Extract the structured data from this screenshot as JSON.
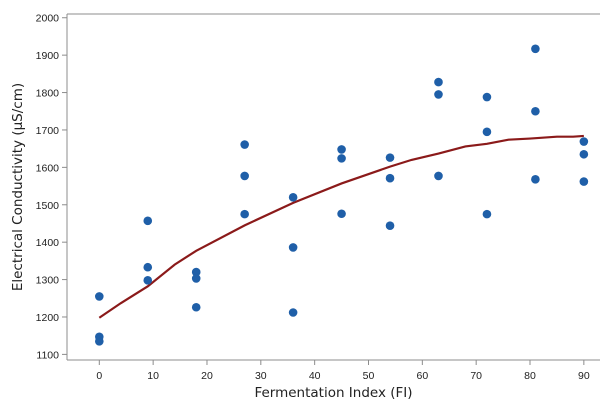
{
  "chart_data": {
    "type": "scatter",
    "title": "",
    "xlabel": "Fermentation Index (FI)",
    "ylabel": "Electrical Conductivity (µS/cm)",
    "xlim": [
      -6,
      93
    ],
    "ylim": [
      1085,
      2010
    ],
    "xticks": [
      0,
      10,
      20,
      30,
      40,
      50,
      60,
      70,
      80,
      90
    ],
    "yticks": [
      1100,
      1200,
      1300,
      1400,
      1500,
      1600,
      1700,
      1800,
      1900,
      2000
    ],
    "grid": false,
    "legend": "none",
    "colors": {
      "points": "#1f5fa8",
      "fit": "#8b1a1a",
      "axis": "#8c8c8c"
    },
    "points": [
      {
        "x": 0,
        "y": 1255
      },
      {
        "x": 0,
        "y": 1147
      },
      {
        "x": 0,
        "y": 1135
      },
      {
        "x": 9,
        "y": 1457
      },
      {
        "x": 9,
        "y": 1333
      },
      {
        "x": 9,
        "y": 1298
      },
      {
        "x": 18,
        "y": 1320
      },
      {
        "x": 18,
        "y": 1303
      },
      {
        "x": 18,
        "y": 1226
      },
      {
        "x": 27,
        "y": 1661
      },
      {
        "x": 27,
        "y": 1577
      },
      {
        "x": 27,
        "y": 1475
      },
      {
        "x": 36,
        "y": 1520
      },
      {
        "x": 36,
        "y": 1386
      },
      {
        "x": 36,
        "y": 1212
      },
      {
        "x": 45,
        "y": 1648
      },
      {
        "x": 45,
        "y": 1624
      },
      {
        "x": 45,
        "y": 1476
      },
      {
        "x": 54,
        "y": 1626
      },
      {
        "x": 54,
        "y": 1571
      },
      {
        "x": 54,
        "y": 1444
      },
      {
        "x": 63,
        "y": 1828
      },
      {
        "x": 63,
        "y": 1795
      },
      {
        "x": 63,
        "y": 1577
      },
      {
        "x": 72,
        "y": 1788
      },
      {
        "x": 72,
        "y": 1695
      },
      {
        "x": 72,
        "y": 1475
      },
      {
        "x": 81,
        "y": 1917
      },
      {
        "x": 81,
        "y": 1750
      },
      {
        "x": 81,
        "y": 1568
      },
      {
        "x": 90,
        "y": 1669
      },
      {
        "x": 90,
        "y": 1635
      },
      {
        "x": 90,
        "y": 1562
      }
    ],
    "fit_line": [
      {
        "x": 0,
        "y": 1198
      },
      {
        "x": 4,
        "y": 1237
      },
      {
        "x": 9,
        "y": 1282
      },
      {
        "x": 14,
        "y": 1340
      },
      {
        "x": 18,
        "y": 1377
      },
      {
        "x": 27,
        "y": 1445
      },
      {
        "x": 36,
        "y": 1505
      },
      {
        "x": 45,
        "y": 1557
      },
      {
        "x": 54,
        "y": 1602
      },
      {
        "x": 58,
        "y": 1620
      },
      {
        "x": 63,
        "y": 1637
      },
      {
        "x": 68,
        "y": 1656
      },
      {
        "x": 72,
        "y": 1663
      },
      {
        "x": 76,
        "y": 1674
      },
      {
        "x": 80,
        "y": 1677
      },
      {
        "x": 85,
        "y": 1682
      },
      {
        "x": 88,
        "y": 1682
      },
      {
        "x": 90,
        "y": 1684
      }
    ]
  }
}
